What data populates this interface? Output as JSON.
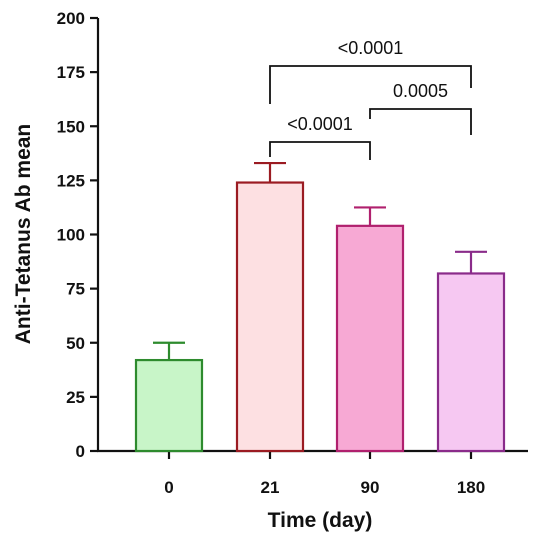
{
  "chart_data": {
    "type": "bar",
    "xlabel": "Time  (day)",
    "ylabel": "Anti-Tetanus Ab mean",
    "ylim": [
      0,
      200
    ],
    "yticks": [
      0,
      25,
      50,
      75,
      100,
      125,
      150,
      175,
      200
    ],
    "categories": [
      "0",
      "21",
      "90",
      "180"
    ],
    "values": [
      42,
      124,
      104,
      82
    ],
    "error": [
      8,
      9,
      8.5,
      10
    ],
    "colors": {
      "fill": [
        "#c8f5c8",
        "#fde0e2",
        "#f7a9d4",
        "#f6c8f2"
      ],
      "stroke": [
        "#2e8b2e",
        "#9b1b22",
        "#b0206e",
        "#8a2b8a"
      ]
    },
    "comparisons": [
      {
        "from": "21",
        "to": "90",
        "label": "<0.0001"
      },
      {
        "from": "21",
        "to": "180",
        "label": "<0.0001"
      },
      {
        "from": "90",
        "to": "180",
        "label": "0.0005"
      }
    ],
    "grid": false
  }
}
